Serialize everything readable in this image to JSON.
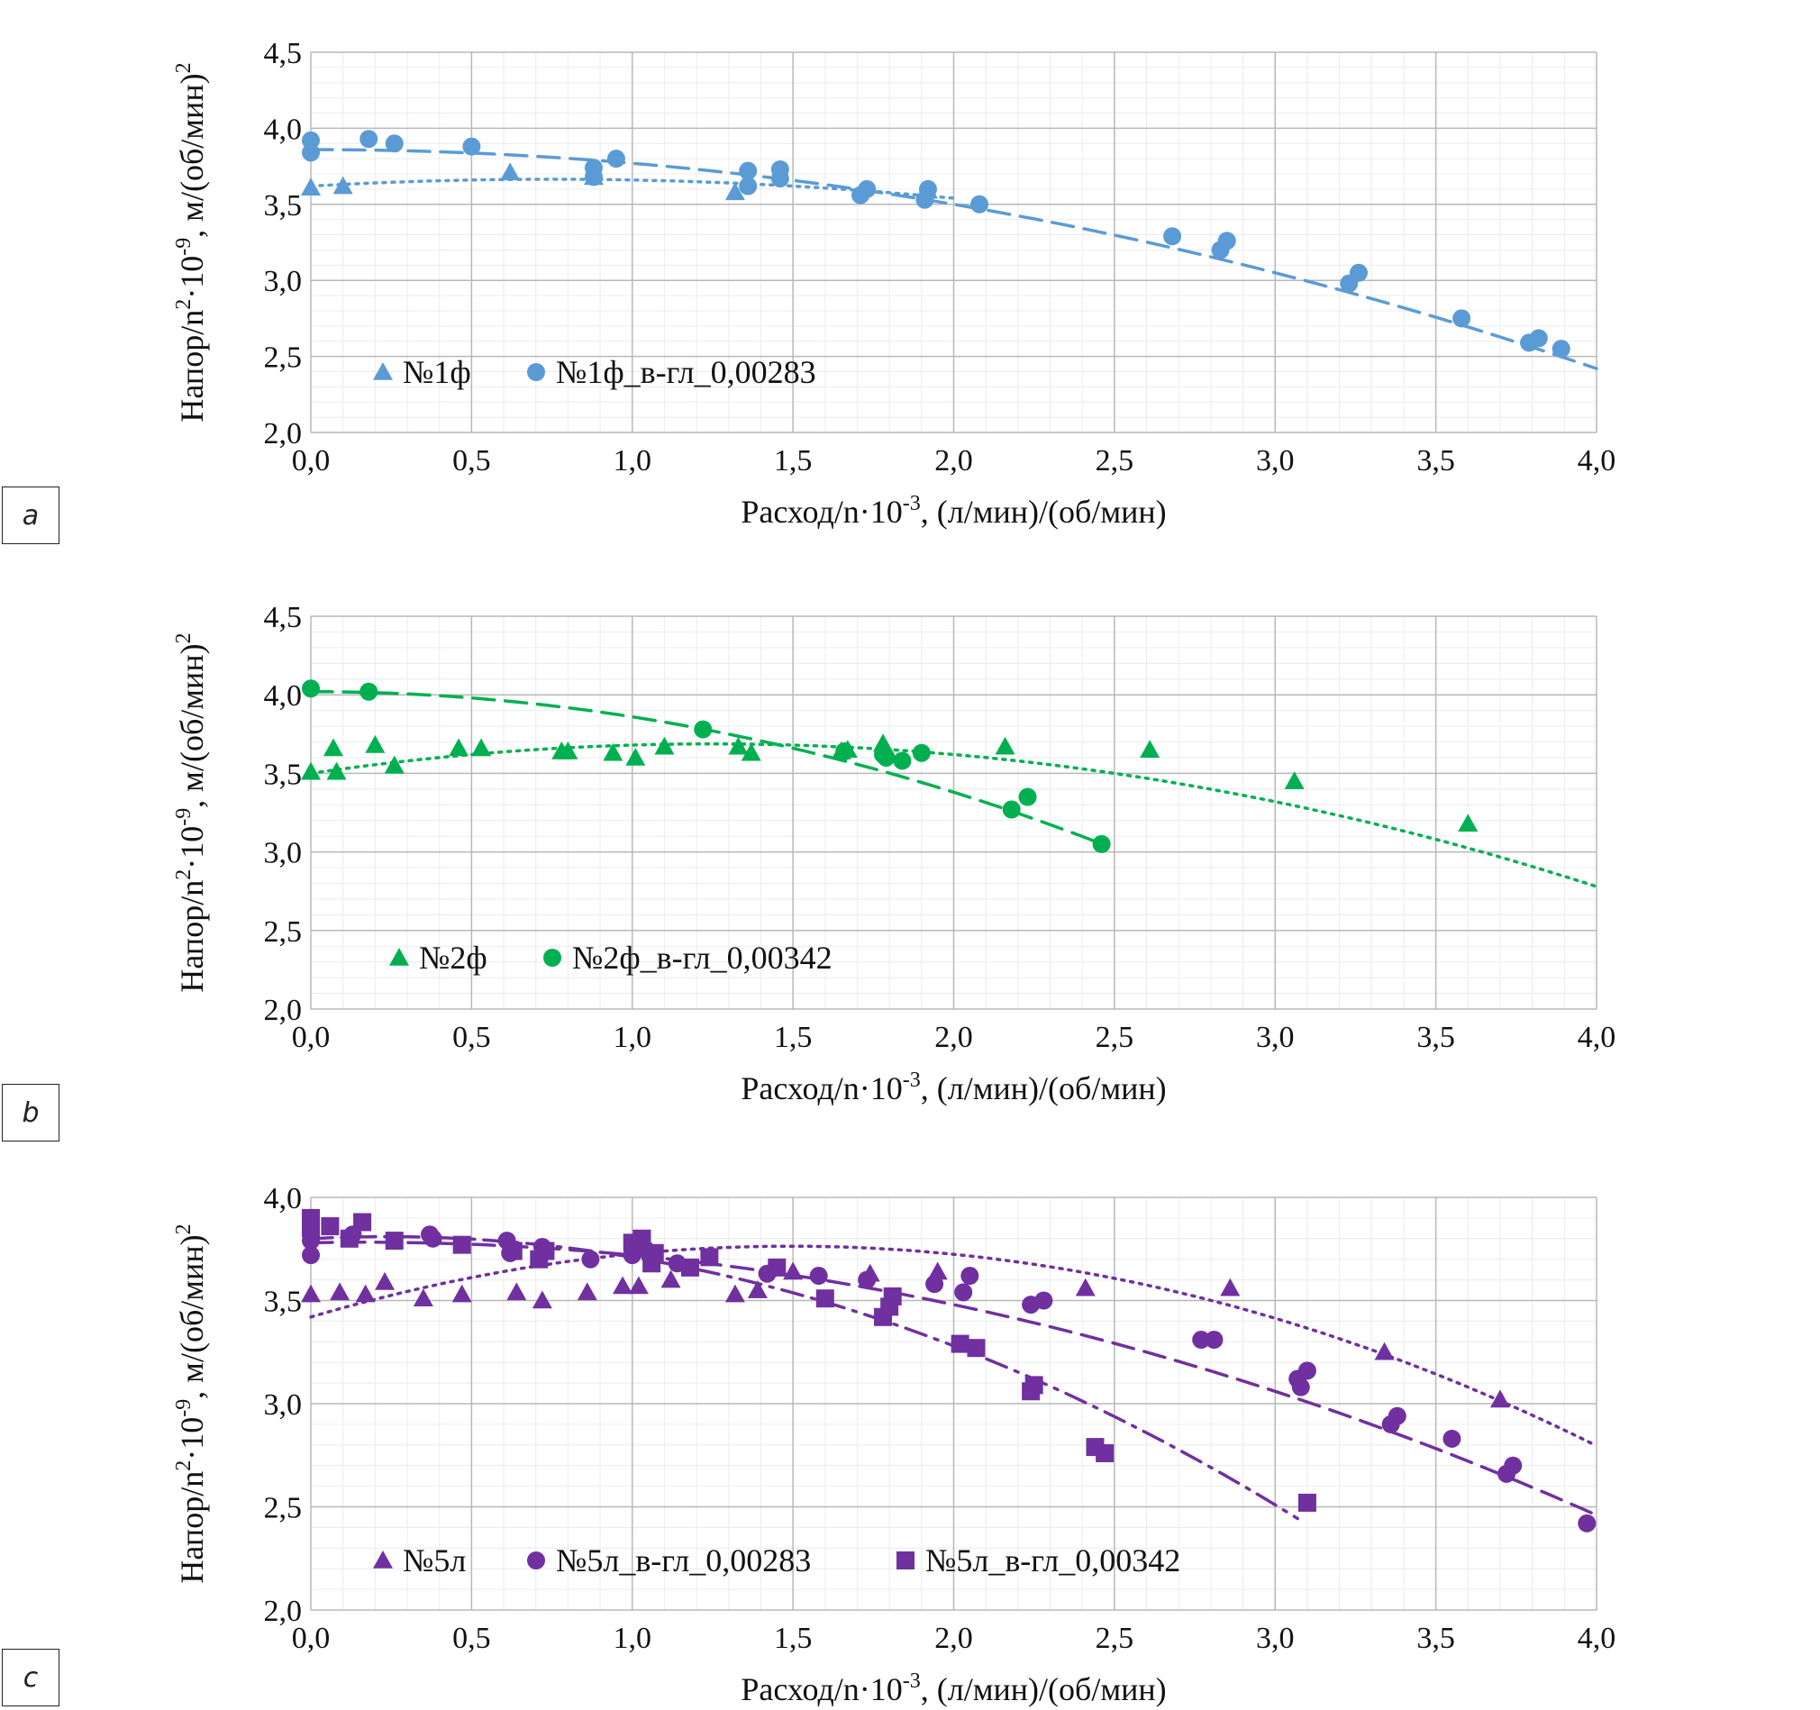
{
  "chart_data": [
    {
      "type": "scatter",
      "panel_label": "a",
      "title": "",
      "xlabel": "Расход/n·10",
      "xlabel_sup": "-3",
      "xlabel_tail": ", (л/мин)/(об/мин)",
      "ylabel": "Напор/n",
      "ylabel_sup1": "2",
      "ylabel_mid": "·10",
      "ylabel_sup2": "-9",
      "ylabel_tail": ", м/(об/мин)",
      "ylabel_sup3": "2",
      "xlim": [
        0,
        4
      ],
      "ylim": [
        2,
        4.5
      ],
      "xticks": [
        "0,0",
        "0,5",
        "1,0",
        "1,5",
        "2,0",
        "2,5",
        "3,0",
        "3,5",
        "4,0"
      ],
      "yticks": [
        "2,0",
        "2,5",
        "3,0",
        "3,5",
        "4,0",
        "4,5"
      ],
      "grid": true,
      "legend_position": "bottom-left",
      "series": [
        {
          "name": "№1ф",
          "marker": "triangle",
          "color": "#5b9bd5",
          "points": [
            [
              0.0,
              3.61
            ],
            [
              0.1,
              3.62
            ],
            [
              0.62,
              3.71
            ],
            [
              0.88,
              3.68
            ],
            [
              1.32,
              3.58
            ],
            [
              1.92,
              3.59
            ]
          ],
          "trend": {
            "style": "dotted",
            "x_range": [
              0,
              2.0
            ],
            "coef": [
              3.62,
              0.12,
              -0.08
            ]
          }
        },
        {
          "name": "№1ф_в-гл_0,00283",
          "marker": "circle",
          "color": "#5b9bd5",
          "points": [
            [
              0.0,
              3.92
            ],
            [
              0.0,
              3.84
            ],
            [
              0.18,
              3.93
            ],
            [
              0.26,
              3.9
            ],
            [
              0.5,
              3.88
            ],
            [
              0.88,
              3.74
            ],
            [
              0.88,
              3.68
            ],
            [
              0.95,
              3.8
            ],
            [
              1.36,
              3.72
            ],
            [
              1.36,
              3.62
            ],
            [
              1.46,
              3.73
            ],
            [
              1.46,
              3.67
            ],
            [
              1.71,
              3.56
            ],
            [
              1.73,
              3.6
            ],
            [
              1.91,
              3.53
            ],
            [
              1.92,
              3.6
            ],
            [
              2.08,
              3.5
            ],
            [
              2.68,
              3.29
            ],
            [
              2.83,
              3.2
            ],
            [
              2.85,
              3.26
            ],
            [
              3.23,
              2.98
            ],
            [
              3.26,
              3.05
            ],
            [
              3.58,
              2.75
            ],
            [
              3.79,
              2.59
            ],
            [
              3.82,
              2.62
            ],
            [
              3.89,
              2.55
            ]
          ],
          "trend": {
            "style": "dashed",
            "x_range": [
              0,
              4.0
            ],
            "coef": [
              3.86,
              0.0,
              -0.09
            ]
          }
        }
      ]
    },
    {
      "type": "scatter",
      "panel_label": "b",
      "title": "",
      "xlabel": "Расход/n·10",
      "xlabel_sup": "-3",
      "xlabel_tail": ", (л/мин)/(об/мин)",
      "ylabel": "Напор/n",
      "ylabel_sup1": "2",
      "ylabel_mid": "·10",
      "ylabel_sup2": "-9",
      "ylabel_tail": ", м/(об/мин)",
      "ylabel_sup3": "2",
      "xlim": [
        0,
        4
      ],
      "ylim": [
        2,
        4.5
      ],
      "xticks": [
        "0,0",
        "0,5",
        "1,0",
        "1,5",
        "2,0",
        "2,5",
        "3,0",
        "3,5",
        "4,0"
      ],
      "yticks": [
        "2,0",
        "2,5",
        "3,0",
        "3,5",
        "4,0",
        "4,5"
      ],
      "grid": true,
      "legend_position": "bottom-left",
      "series": [
        {
          "name": "№2ф",
          "marker": "triangle",
          "color": "#00b050",
          "points": [
            [
              0.0,
              3.51
            ],
            [
              0.07,
              3.66
            ],
            [
              0.08,
              3.51
            ],
            [
              0.2,
              3.68
            ],
            [
              0.26,
              3.55
            ],
            [
              0.46,
              3.66
            ],
            [
              0.53,
              3.66
            ],
            [
              0.78,
              3.64
            ],
            [
              0.8,
              3.64
            ],
            [
              0.94,
              3.63
            ],
            [
              1.01,
              3.6
            ],
            [
              1.1,
              3.67
            ],
            [
              1.33,
              3.67
            ],
            [
              1.37,
              3.63
            ],
            [
              1.65,
              3.64
            ],
            [
              1.67,
              3.65
            ],
            [
              1.78,
              3.69
            ],
            [
              2.16,
              3.67
            ],
            [
              2.61,
              3.65
            ],
            [
              3.06,
              3.45
            ],
            [
              3.6,
              3.18
            ]
          ],
          "trend": {
            "style": "dotted",
            "x_range": [
              0,
              4.0
            ],
            "coef": [
              3.5,
              0.3,
              -0.12
            ]
          }
        },
        {
          "name": "№2ф_в-гл_0,00342",
          "marker": "circle",
          "color": "#00b050",
          "points": [
            [
              0.0,
              4.04
            ],
            [
              0.18,
              4.02
            ],
            [
              1.22,
              3.78
            ],
            [
              1.66,
              3.64
            ],
            [
              1.78,
              3.62
            ],
            [
              1.79,
              3.6
            ],
            [
              1.84,
              3.58
            ],
            [
              1.9,
              3.63
            ],
            [
              2.18,
              3.27
            ],
            [
              2.23,
              3.35
            ],
            [
              2.46,
              3.05
            ]
          ],
          "trend": {
            "style": "dashed",
            "x_range": [
              0,
              2.45
            ],
            "coef": [
              4.02,
              0.0,
              -0.16
            ]
          }
        }
      ]
    },
    {
      "type": "scatter",
      "panel_label": "c",
      "title": "",
      "xlabel": "Расход/n·10",
      "xlabel_sup": "-3",
      "xlabel_tail": ", (л/мин)/(об/мин)",
      "ylabel": "Напор/n",
      "ylabel_sup1": "2",
      "ylabel_mid": "·10",
      "ylabel_sup2": "-9",
      "ylabel_tail": ", м/(об/мин)",
      "ylabel_sup3": "2",
      "xlim": [
        0,
        4
      ],
      "ylim": [
        2,
        4
      ],
      "xticks": [
        "0,0",
        "0,5",
        "1,0",
        "1,5",
        "2,0",
        "2,5",
        "3,0",
        "3,5",
        "4,0"
      ],
      "yticks": [
        "2,0",
        "2,5",
        "3,0",
        "3,5",
        "4,0"
      ],
      "grid": true,
      "legend_position": "bottom-left",
      "series": [
        {
          "name": "№5л",
          "marker": "triangle",
          "color": "#7030a0",
          "points": [
            [
              0.0,
              3.53
            ],
            [
              0.09,
              3.54
            ],
            [
              0.17,
              3.53
            ],
            [
              0.23,
              3.59
            ],
            [
              0.35,
              3.51
            ],
            [
              0.47,
              3.53
            ],
            [
              0.64,
              3.54
            ],
            [
              0.72,
              3.5
            ],
            [
              0.86,
              3.54
            ],
            [
              0.97,
              3.57
            ],
            [
              1.02,
              3.57
            ],
            [
              1.12,
              3.6
            ],
            [
              1.32,
              3.53
            ],
            [
              1.39,
              3.55
            ],
            [
              1.5,
              3.64
            ],
            [
              1.74,
              3.63
            ],
            [
              1.95,
              3.64
            ],
            [
              2.41,
              3.56
            ],
            [
              2.86,
              3.56
            ],
            [
              3.34,
              3.25
            ],
            [
              3.7,
              3.02
            ]
          ],
          "trend": {
            "style": "dotted",
            "x_range": [
              0,
              4.0
            ],
            "coef": [
              3.42,
              0.46,
              -0.154
            ]
          }
        },
        {
          "name": "№5л_в-гл_0,00283",
          "marker": "circle",
          "color": "#7030a0",
          "points": [
            [
              0.0,
              3.79
            ],
            [
              0.0,
              3.72
            ],
            [
              0.13,
              3.82
            ],
            [
              0.37,
              3.82
            ],
            [
              0.38,
              3.8
            ],
            [
              0.61,
              3.79
            ],
            [
              0.62,
              3.73
            ],
            [
              0.72,
              3.76
            ],
            [
              0.87,
              3.7
            ],
            [
              1.0,
              3.72
            ],
            [
              1.04,
              3.75
            ],
            [
              1.14,
              3.68
            ],
            [
              1.42,
              3.63
            ],
            [
              1.58,
              3.62
            ],
            [
              1.73,
              3.6
            ],
            [
              1.94,
              3.58
            ],
            [
              2.03,
              3.54
            ],
            [
              2.05,
              3.62
            ],
            [
              2.24,
              3.48
            ],
            [
              2.28,
              3.5
            ],
            [
              2.77,
              3.31
            ],
            [
              2.81,
              3.31
            ],
            [
              3.07,
              3.12
            ],
            [
              3.08,
              3.08
            ],
            [
              3.1,
              3.16
            ],
            [
              3.36,
              2.9
            ],
            [
              3.38,
              2.94
            ],
            [
              3.55,
              2.83
            ],
            [
              3.72,
              2.66
            ],
            [
              3.74,
              2.7
            ],
            [
              3.97,
              2.42
            ]
          ],
          "trend": {
            "style": "dashed",
            "x_range": [
              0,
              4.0
            ],
            "coef": [
              3.78,
              0.03,
              -0.09
            ]
          }
        },
        {
          "name": "№5л_в-гл_0,00342",
          "marker": "square",
          "color": "#7030a0",
          "points": [
            [
              0.0,
              3.9
            ],
            [
              0.0,
              3.85
            ],
            [
              0.06,
              3.86
            ],
            [
              0.12,
              3.8
            ],
            [
              0.16,
              3.88
            ],
            [
              0.26,
              3.79
            ],
            [
              0.47,
              3.77
            ],
            [
              0.63,
              3.74
            ],
            [
              0.71,
              3.7
            ],
            [
              0.73,
              3.74
            ],
            [
              1.0,
              3.78
            ],
            [
              1.03,
              3.8
            ],
            [
              1.07,
              3.73
            ],
            [
              1.06,
              3.68
            ],
            [
              1.18,
              3.66
            ],
            [
              1.24,
              3.71
            ],
            [
              1.45,
              3.66
            ],
            [
              1.6,
              3.51
            ],
            [
              1.78,
              3.42
            ],
            [
              1.8,
              3.47
            ],
            [
              1.81,
              3.52
            ],
            [
              2.02,
              3.29
            ],
            [
              2.07,
              3.27
            ],
            [
              2.24,
              3.06
            ],
            [
              2.25,
              3.09
            ],
            [
              2.44,
              2.79
            ],
            [
              2.47,
              2.76
            ],
            [
              3.1,
              2.52
            ]
          ],
          "trend": {
            "style": "dashdot",
            "x_range": [
              0,
              3.07
            ],
            "coef": [
              3.8,
              0.08,
              -0.17
            ]
          }
        }
      ]
    }
  ]
}
